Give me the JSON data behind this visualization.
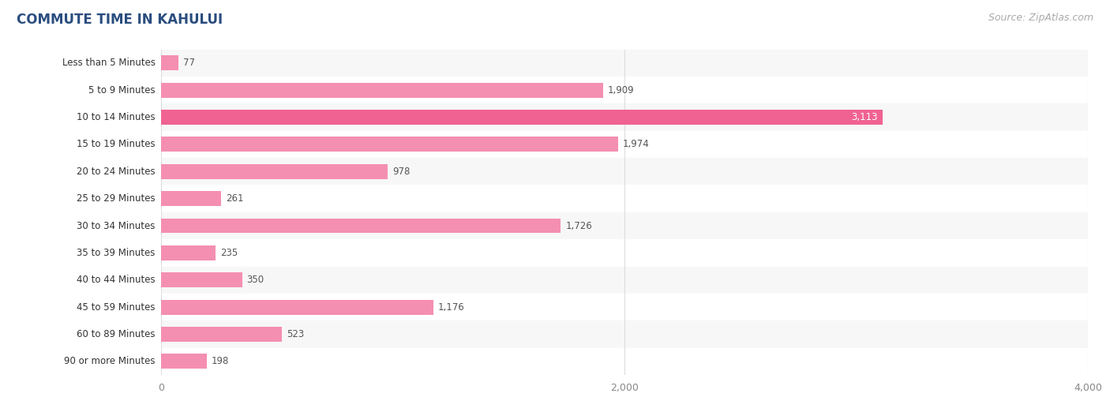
{
  "title": "COMMUTE TIME IN KAHULUI",
  "source": "Source: ZipAtlas.com",
  "categories": [
    "Less than 5 Minutes",
    "5 to 9 Minutes",
    "10 to 14 Minutes",
    "15 to 19 Minutes",
    "20 to 24 Minutes",
    "25 to 29 Minutes",
    "30 to 34 Minutes",
    "35 to 39 Minutes",
    "40 to 44 Minutes",
    "45 to 59 Minutes",
    "60 to 89 Minutes",
    "90 or more Minutes"
  ],
  "values": [
    77,
    1909,
    3113,
    1974,
    978,
    261,
    1726,
    235,
    350,
    1176,
    523,
    198
  ],
  "bar_color_normal": "#f48fb1",
  "bar_color_max": "#f06292",
  "label_color": "#333333",
  "value_color_outside": "#555555",
  "value_color_inside": "#ffffff",
  "background_color": "#ffffff",
  "row_odd_color": "#f7f7f7",
  "row_even_color": "#ffffff",
  "grid_color": "#dddddd",
  "xlim": [
    0,
    4000
  ],
  "xticks": [
    0,
    2000,
    4000
  ],
  "title_fontsize": 12,
  "source_fontsize": 9,
  "bar_label_fontsize": 8.5,
  "category_fontsize": 8.5,
  "tick_fontsize": 9,
  "title_color": "#2a4d7f",
  "source_color": "#aaaaaa"
}
